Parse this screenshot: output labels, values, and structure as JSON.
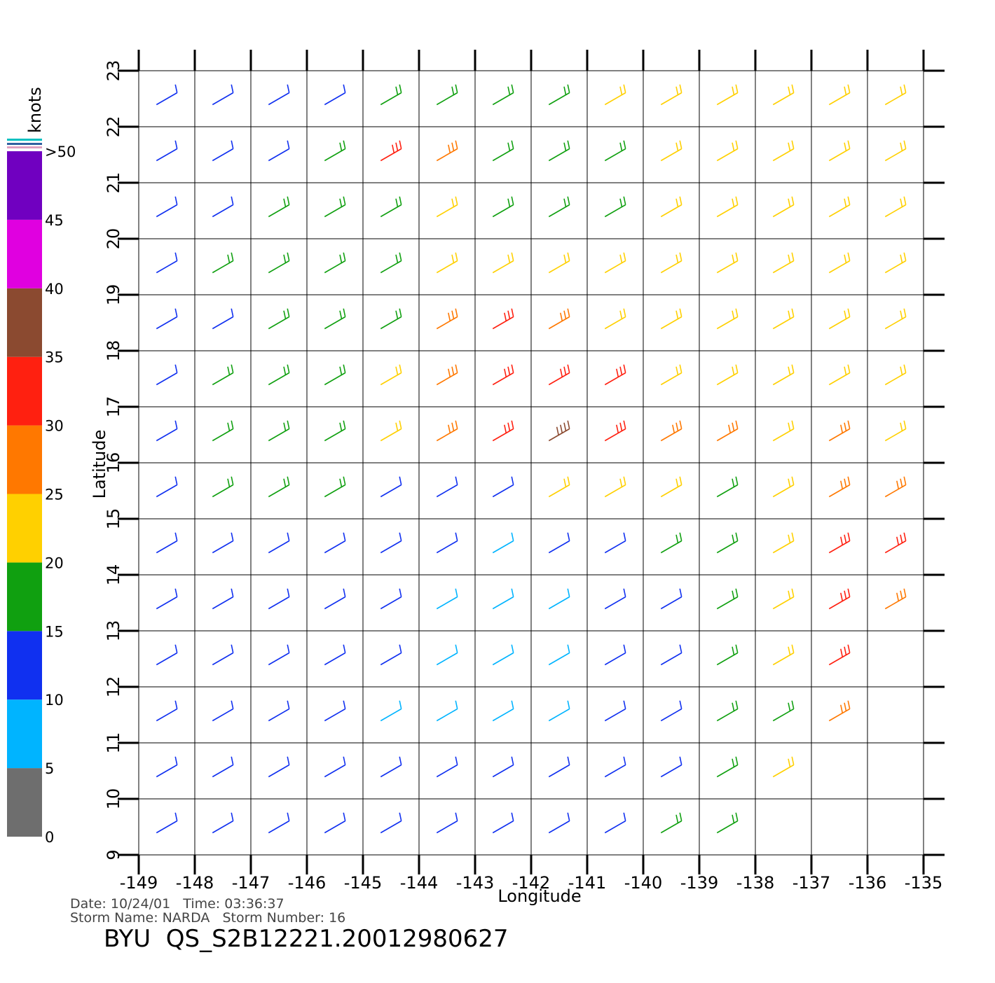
{
  "chart_data": {
    "type": "wind-barb",
    "title": "BYU  QS_S2B12221.20012980627",
    "annotations": [
      "Date: 10/24/01   Time: 03:36:37",
      "Storm Name: NARDA   Storm Number: 16"
    ],
    "x_label": "Longitude",
    "y_label": "Latitude",
    "xlim": [
      -149,
      -135
    ],
    "xticks": [
      -149,
      -148,
      -147,
      -146,
      -145,
      -144,
      -143,
      -142,
      -141,
      -140,
      -139,
      -138,
      -137,
      -136,
      -135
    ],
    "ylim": [
      9,
      23
    ],
    "yticks": [
      9,
      10,
      11,
      12,
      13,
      14,
      15,
      16,
      17,
      18,
      19,
      20,
      21,
      22,
      23
    ],
    "grid": true,
    "colorbar": {
      "title": "knots",
      "ticks": [
        0,
        5,
        10,
        15,
        20,
        25,
        30,
        35,
        40,
        45,
        {
          "value": 50,
          "label": ">50"
        }
      ],
      "colors": [
        "#6e6e6e",
        "#00b4ff",
        "#1030f0",
        "#10a010",
        "#ffd000",
        "#ff7800",
        "#ff2010",
        "#8b4a30",
        "#e000e0",
        "#7000c0"
      ]
    },
    "wind": {
      "lon": [
        -148.5,
        -147.5,
        -146.5,
        -145.5,
        -144.5,
        -143.5,
        -142.5,
        -141.5,
        -140.5,
        -139.5,
        -138.5,
        -137.5,
        -136.5,
        -135.5
      ],
      "lat": [
        22.5,
        21.5,
        20.5,
        19.5,
        18.5,
        17.5,
        16.5,
        15.5,
        14.5,
        13.5,
        12.5,
        11.5,
        10.5,
        9.5
      ],
      "speed": [
        [
          12,
          12,
          13,
          14,
          16,
          17,
          17,
          17,
          20,
          21,
          21,
          21,
          21,
          21
        ],
        [
          11,
          12,
          14,
          17,
          30,
          28,
          17,
          16,
          15,
          20,
          21,
          20,
          21,
          21
        ],
        [
          12,
          14,
          16,
          17,
          18,
          20,
          17,
          16,
          19,
          20,
          21,
          21,
          21,
          22
        ],
        [
          12,
          15,
          16,
          17,
          18,
          20,
          21,
          20,
          20,
          21,
          21,
          21,
          21,
          22
        ],
        [
          12,
          14,
          16,
          18,
          19,
          27,
          30,
          26,
          22,
          21,
          21,
          21,
          21,
          21
        ],
        [
          13,
          15,
          17,
          19,
          22,
          28,
          32,
          34,
          30,
          22,
          21,
          21,
          21,
          21
        ],
        [
          14,
          16,
          17,
          19,
          22,
          26,
          34,
          37,
          30,
          28,
          25,
          22,
          25,
          24
        ],
        [
          14,
          15,
          16,
          16,
          14,
          12,
          12,
          22,
          24,
          20,
          18,
          24,
          28,
          28
        ],
        [
          13,
          13,
          13,
          12,
          12,
          10,
          9,
          12,
          14,
          16,
          18,
          24,
          30,
          30
        ],
        [
          14,
          14,
          13,
          12,
          11,
          9,
          8,
          9,
          11,
          13,
          16,
          22,
          30,
          26
        ],
        [
          13,
          12,
          12,
          11,
          10,
          8,
          8,
          9,
          11,
          13,
          16,
          20,
          30,
          null
        ],
        [
          12,
          12,
          11,
          10,
          9,
          8,
          8,
          9,
          12,
          14,
          16,
          19,
          28,
          null
        ],
        [
          13,
          12,
          11,
          10,
          10,
          10,
          10,
          12,
          13,
          14,
          17,
          20,
          null,
          null
        ],
        [
          13,
          12,
          11,
          10,
          11,
          13,
          13,
          13,
          12,
          16,
          17,
          null,
          null,
          null
        ]
      ]
    }
  }
}
